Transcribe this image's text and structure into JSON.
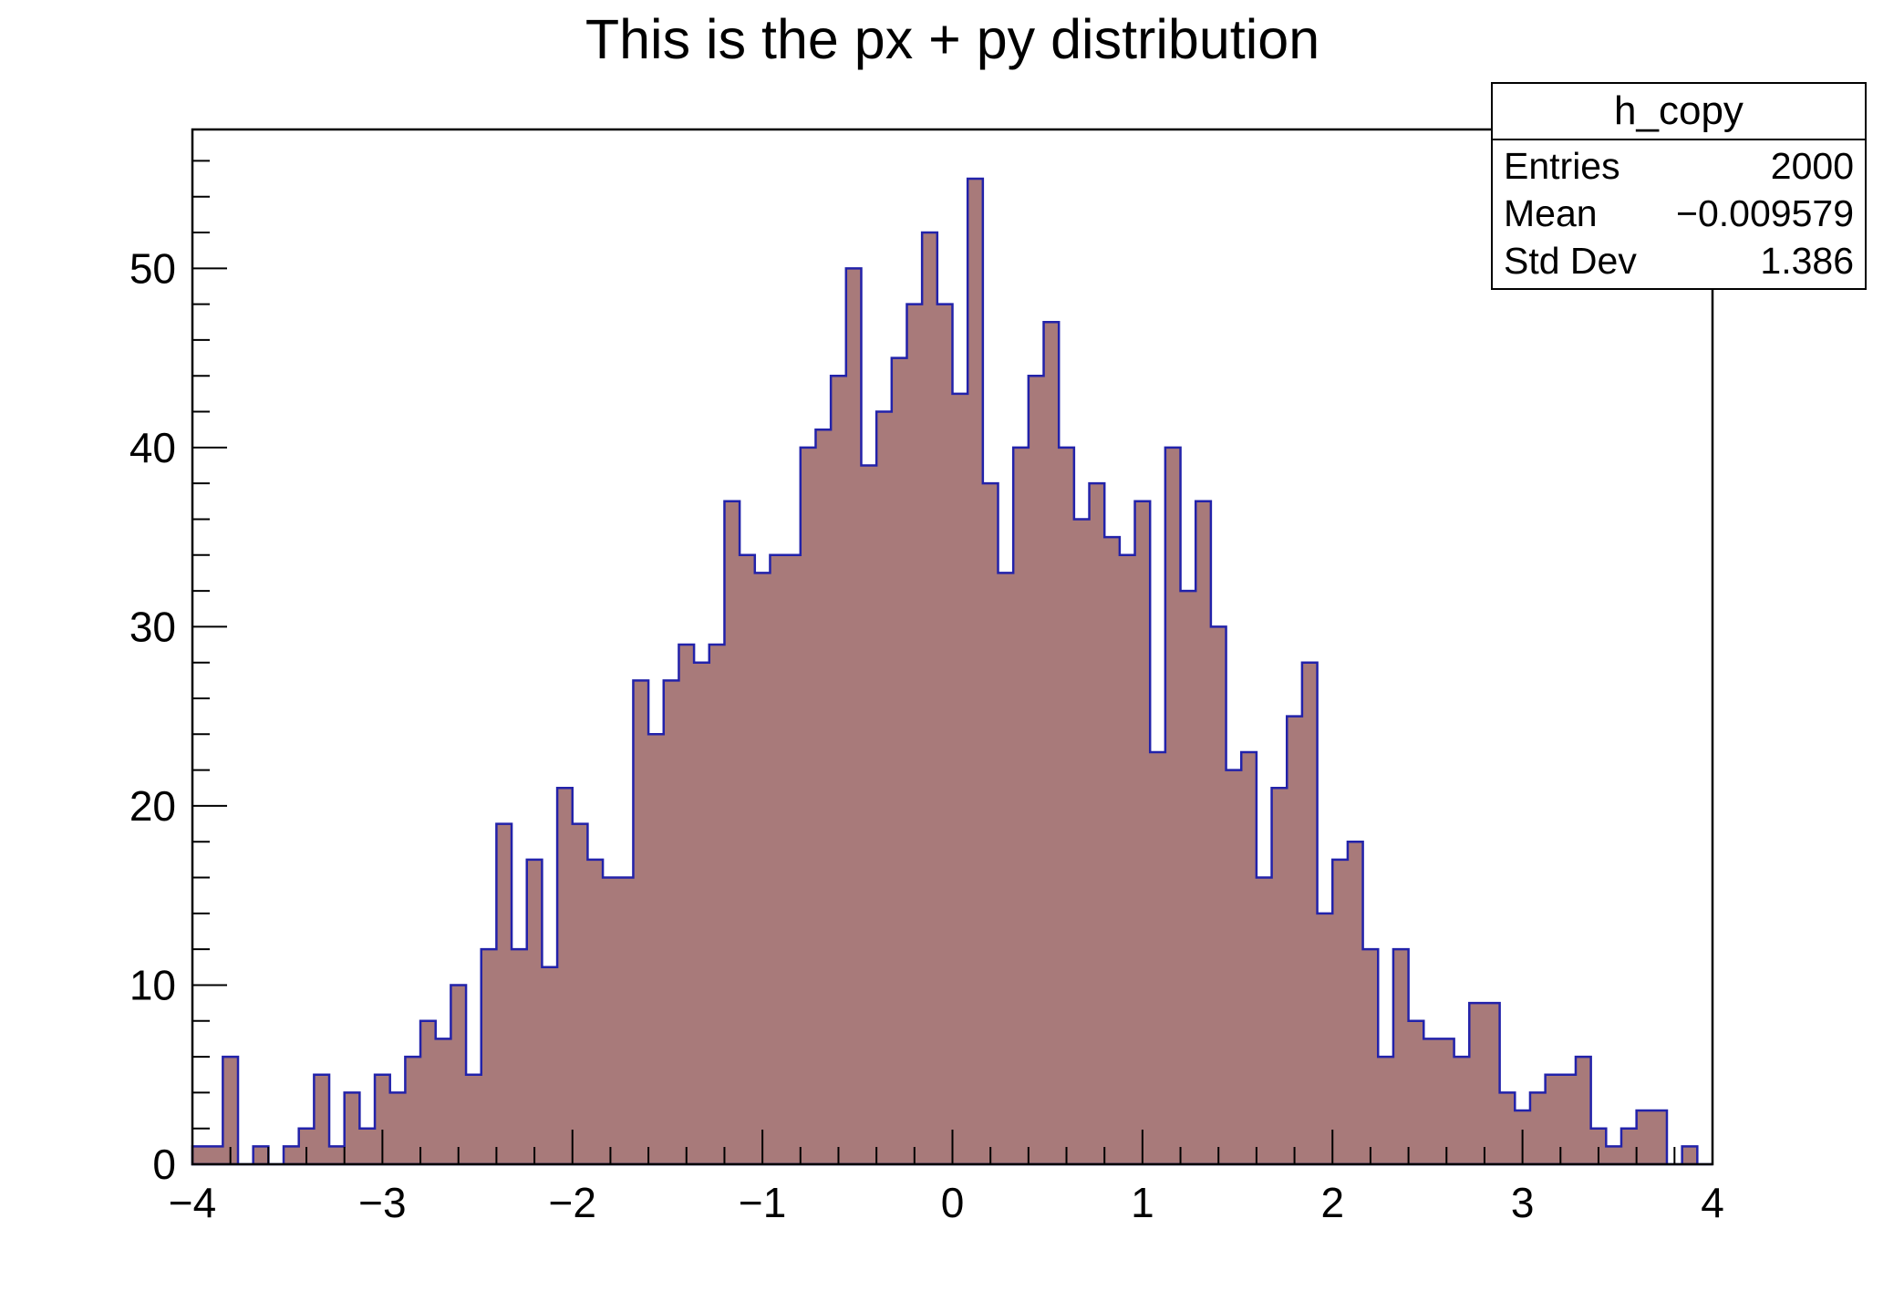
{
  "title": "This is the px + py distribution",
  "stats": {
    "name": "h_copy",
    "rows": [
      {
        "label": "Entries",
        "value": "2000"
      },
      {
        "label": "Mean",
        "value": "−0.009579"
      },
      {
        "label": "Std Dev",
        "value": "1.386"
      }
    ]
  },
  "colors": {
    "background": "#ffffff",
    "hist_fill": "#a87a7a",
    "hist_line": "#2222aa",
    "frame": "#000000",
    "text": "#000000"
  },
  "chart_data": {
    "type": "bar",
    "subtype": "histogram",
    "title": "This is the px + py distribution",
    "xlabel": "",
    "ylabel": "",
    "x_min": -4,
    "x_max": 4,
    "bin_width": 0.08,
    "n_bins": 100,
    "ylim": [
      0,
      57.75
    ],
    "grid": false,
    "legend": "none",
    "x_ticks": [
      -4,
      -3,
      -2,
      -1,
      0,
      1,
      2,
      3,
      4
    ],
    "x_tick_labels": [
      "−4",
      "−3",
      "−2",
      "−1",
      "0",
      "1",
      "2",
      "3",
      "4"
    ],
    "x_minor_step": 0.2,
    "y_ticks": [
      0,
      10,
      20,
      30,
      40,
      50
    ],
    "y_tick_labels": [
      "0",
      "10",
      "20",
      "30",
      "40",
      "50"
    ],
    "y_minor_step": 2,
    "counts": [
      1,
      1,
      6,
      0,
      1,
      0,
      1,
      2,
      5,
      1,
      4,
      2,
      5,
      4,
      6,
      8,
      7,
      10,
      5,
      12,
      19,
      12,
      17,
      11,
      21,
      19,
      17,
      16,
      16,
      27,
      24,
      27,
      29,
      28,
      29,
      37,
      34,
      33,
      34,
      34,
      40,
      41,
      44,
      50,
      39,
      42,
      45,
      48,
      52,
      48,
      43,
      55,
      38,
      33,
      40,
      44,
      47,
      40,
      36,
      38,
      35,
      34,
      37,
      23,
      40,
      32,
      37,
      30,
      22,
      23,
      16,
      21,
      25,
      28,
      14,
      17,
      18,
      12,
      6,
      12,
      8,
      7,
      7,
      6,
      9,
      9,
      4,
      3,
      4,
      5,
      5,
      6,
      2,
      1,
      2,
      3,
      3,
      0,
      1,
      0
    ]
  }
}
